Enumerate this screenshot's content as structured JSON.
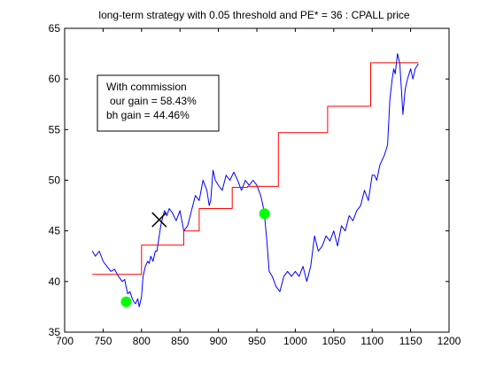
{
  "chart_data": {
    "type": "line",
    "title": "long-term strategy with 0.05 threshold and PE* = 36 : CPALL price",
    "xlabel": "",
    "ylabel": "",
    "xlim": [
      700,
      1200
    ],
    "ylim": [
      35,
      65
    ],
    "xticks": [
      700,
      750,
      800,
      850,
      900,
      950,
      1000,
      1050,
      1100,
      1150,
      1200
    ],
    "yticks": [
      35,
      40,
      45,
      50,
      55,
      60,
      65
    ],
    "grid": false,
    "legend": null,
    "annotation": {
      "lines": [
        "With commission",
        "our gain = 58.43%",
        "bh gain = 44.46%"
      ]
    },
    "series": [
      {
        "kind": "price",
        "color": "#0000ff",
        "x": [
          736,
          740,
          745,
          750,
          755,
          760,
          765,
          770,
          775,
          778,
          780,
          782,
          785,
          788,
          790,
          792,
          795,
          797,
          800,
          802,
          805,
          808,
          810,
          812,
          815,
          818,
          820,
          822,
          825,
          828,
          830,
          833,
          836,
          840,
          845,
          850,
          855,
          860,
          865,
          870,
          875,
          880,
          885,
          888,
          890,
          893,
          896,
          900,
          905,
          910,
          915,
          920,
          925,
          930,
          935,
          940,
          945,
          950,
          955,
          958,
          960,
          963,
          966,
          970,
          975,
          980,
          985,
          990,
          995,
          1000,
          1005,
          1010,
          1015,
          1020,
          1025,
          1030,
          1035,
          1040,
          1045,
          1050,
          1055,
          1060,
          1065,
          1070,
          1075,
          1080,
          1085,
          1090,
          1095,
          1100,
          1103,
          1106,
          1110,
          1113,
          1116,
          1120,
          1123,
          1126,
          1128,
          1130,
          1133,
          1136,
          1138,
          1140,
          1143,
          1146,
          1150,
          1153,
          1156,
          1160
        ],
        "y": [
          43.0,
          42.5,
          43.0,
          42.0,
          41.5,
          41.0,
          41.2,
          40.5,
          40.0,
          40.2,
          39.5,
          38.8,
          39.0,
          38.3,
          38.0,
          37.8,
          38.3,
          37.5,
          38.5,
          40.5,
          41.5,
          42.0,
          41.8,
          42.5,
          42.0,
          43.0,
          43.0,
          44.0,
          45.5,
          46.5,
          47.0,
          46.5,
          47.2,
          46.8,
          46.0,
          47.0,
          45.0,
          45.5,
          47.0,
          48.5,
          48.0,
          50.0,
          49.0,
          47.5,
          48.0,
          51.0,
          50.0,
          49.5,
          49.0,
          50.5,
          50.0,
          50.8,
          50.0,
          49.0,
          50.0,
          49.5,
          50.0,
          49.5,
          48.5,
          47.5,
          46.5,
          44.0,
          41.0,
          40.5,
          39.5,
          39.0,
          40.5,
          41.0,
          40.5,
          41.0,
          40.5,
          41.5,
          40.0,
          41.5,
          44.5,
          43.0,
          43.5,
          44.5,
          44.0,
          45.0,
          43.5,
          45.5,
          45.0,
          46.5,
          46.0,
          47.0,
          47.5,
          49.0,
          48.0,
          50.5,
          50.5,
          50.0,
          51.5,
          52.0,
          52.5,
          53.5,
          58.0,
          60.0,
          61.0,
          60.5,
          62.5,
          61.5,
          59.0,
          56.5,
          59.0,
          60.0,
          61.0,
          60.0,
          61.0,
          61.5
        ]
      },
      {
        "kind": "strategy",
        "color": "#ff0000",
        "x": [
          736,
          800,
          800,
          855,
          855,
          875,
          875,
          918,
          918,
          938,
          938,
          978,
          978,
          1042,
          1042,
          1098,
          1098,
          1160
        ],
        "y": [
          40.7,
          40.7,
          43.6,
          43.6,
          45.0,
          45.0,
          47.2,
          47.2,
          49.3,
          49.3,
          49.4,
          49.4,
          54.7,
          54.7,
          57.3,
          57.3,
          61.6,
          61.6
        ]
      }
    ],
    "markers": [
      {
        "kind": "buy",
        "shape": "circle",
        "color": "#00ff00",
        "x": 780,
        "y": 38.0
      },
      {
        "kind": "buy",
        "shape": "circle",
        "color": "#00ff00",
        "x": 960,
        "y": 46.7
      },
      {
        "kind": "sell",
        "shape": "x",
        "color": "#000000",
        "x": 823,
        "y": 46.1
      }
    ]
  }
}
